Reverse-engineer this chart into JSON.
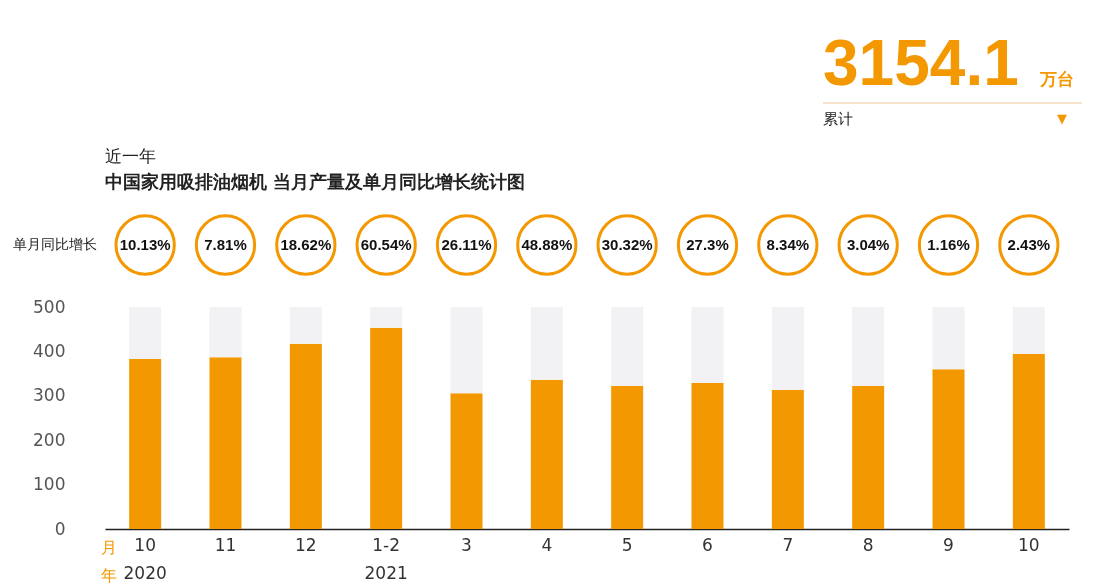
{
  "chart_data": {
    "type": "bar",
    "title": "中国家用吸排油烟机 当月产量及单月同比增长统计图",
    "subtitle": "近一年",
    "categories": [
      "10\n2020",
      "11",
      "12",
      "1-2\n2021",
      "3",
      "4",
      "5",
      "6",
      "7",
      "8",
      "9",
      "10"
    ],
    "stacked": true,
    "series": [
      {
        "color": "#f39800",
        "values": [
          383,
          387,
          417,
          453,
          306,
          336,
          322,
          329,
          313,
          322,
          360,
          394
        ]
      },
      {
        "color": "#f2f2f4",
        "values": [
          117,
          113,
          83,
          47,
          194,
          164,
          178,
          171,
          187,
          178,
          140,
          106
        ]
      }
    ],
    "ylim": [
      0,
      500
    ],
    "yticks": [
      0,
      100,
      200,
      300,
      400,
      500
    ],
    "grid": false,
    "annotations": [
      "3154.1",
      "万台",
      "累计",
      "▼",
      "单月同比增长",
      "月",
      "年",
      "10.13%",
      "7.81%",
      "18.62%",
      "60.54%",
      "26.11%",
      "48.88%",
      "30.32%",
      "27.3%",
      "8.34%",
      "3.04%",
      "1.16%",
      "2.43%"
    ]
  }
}
